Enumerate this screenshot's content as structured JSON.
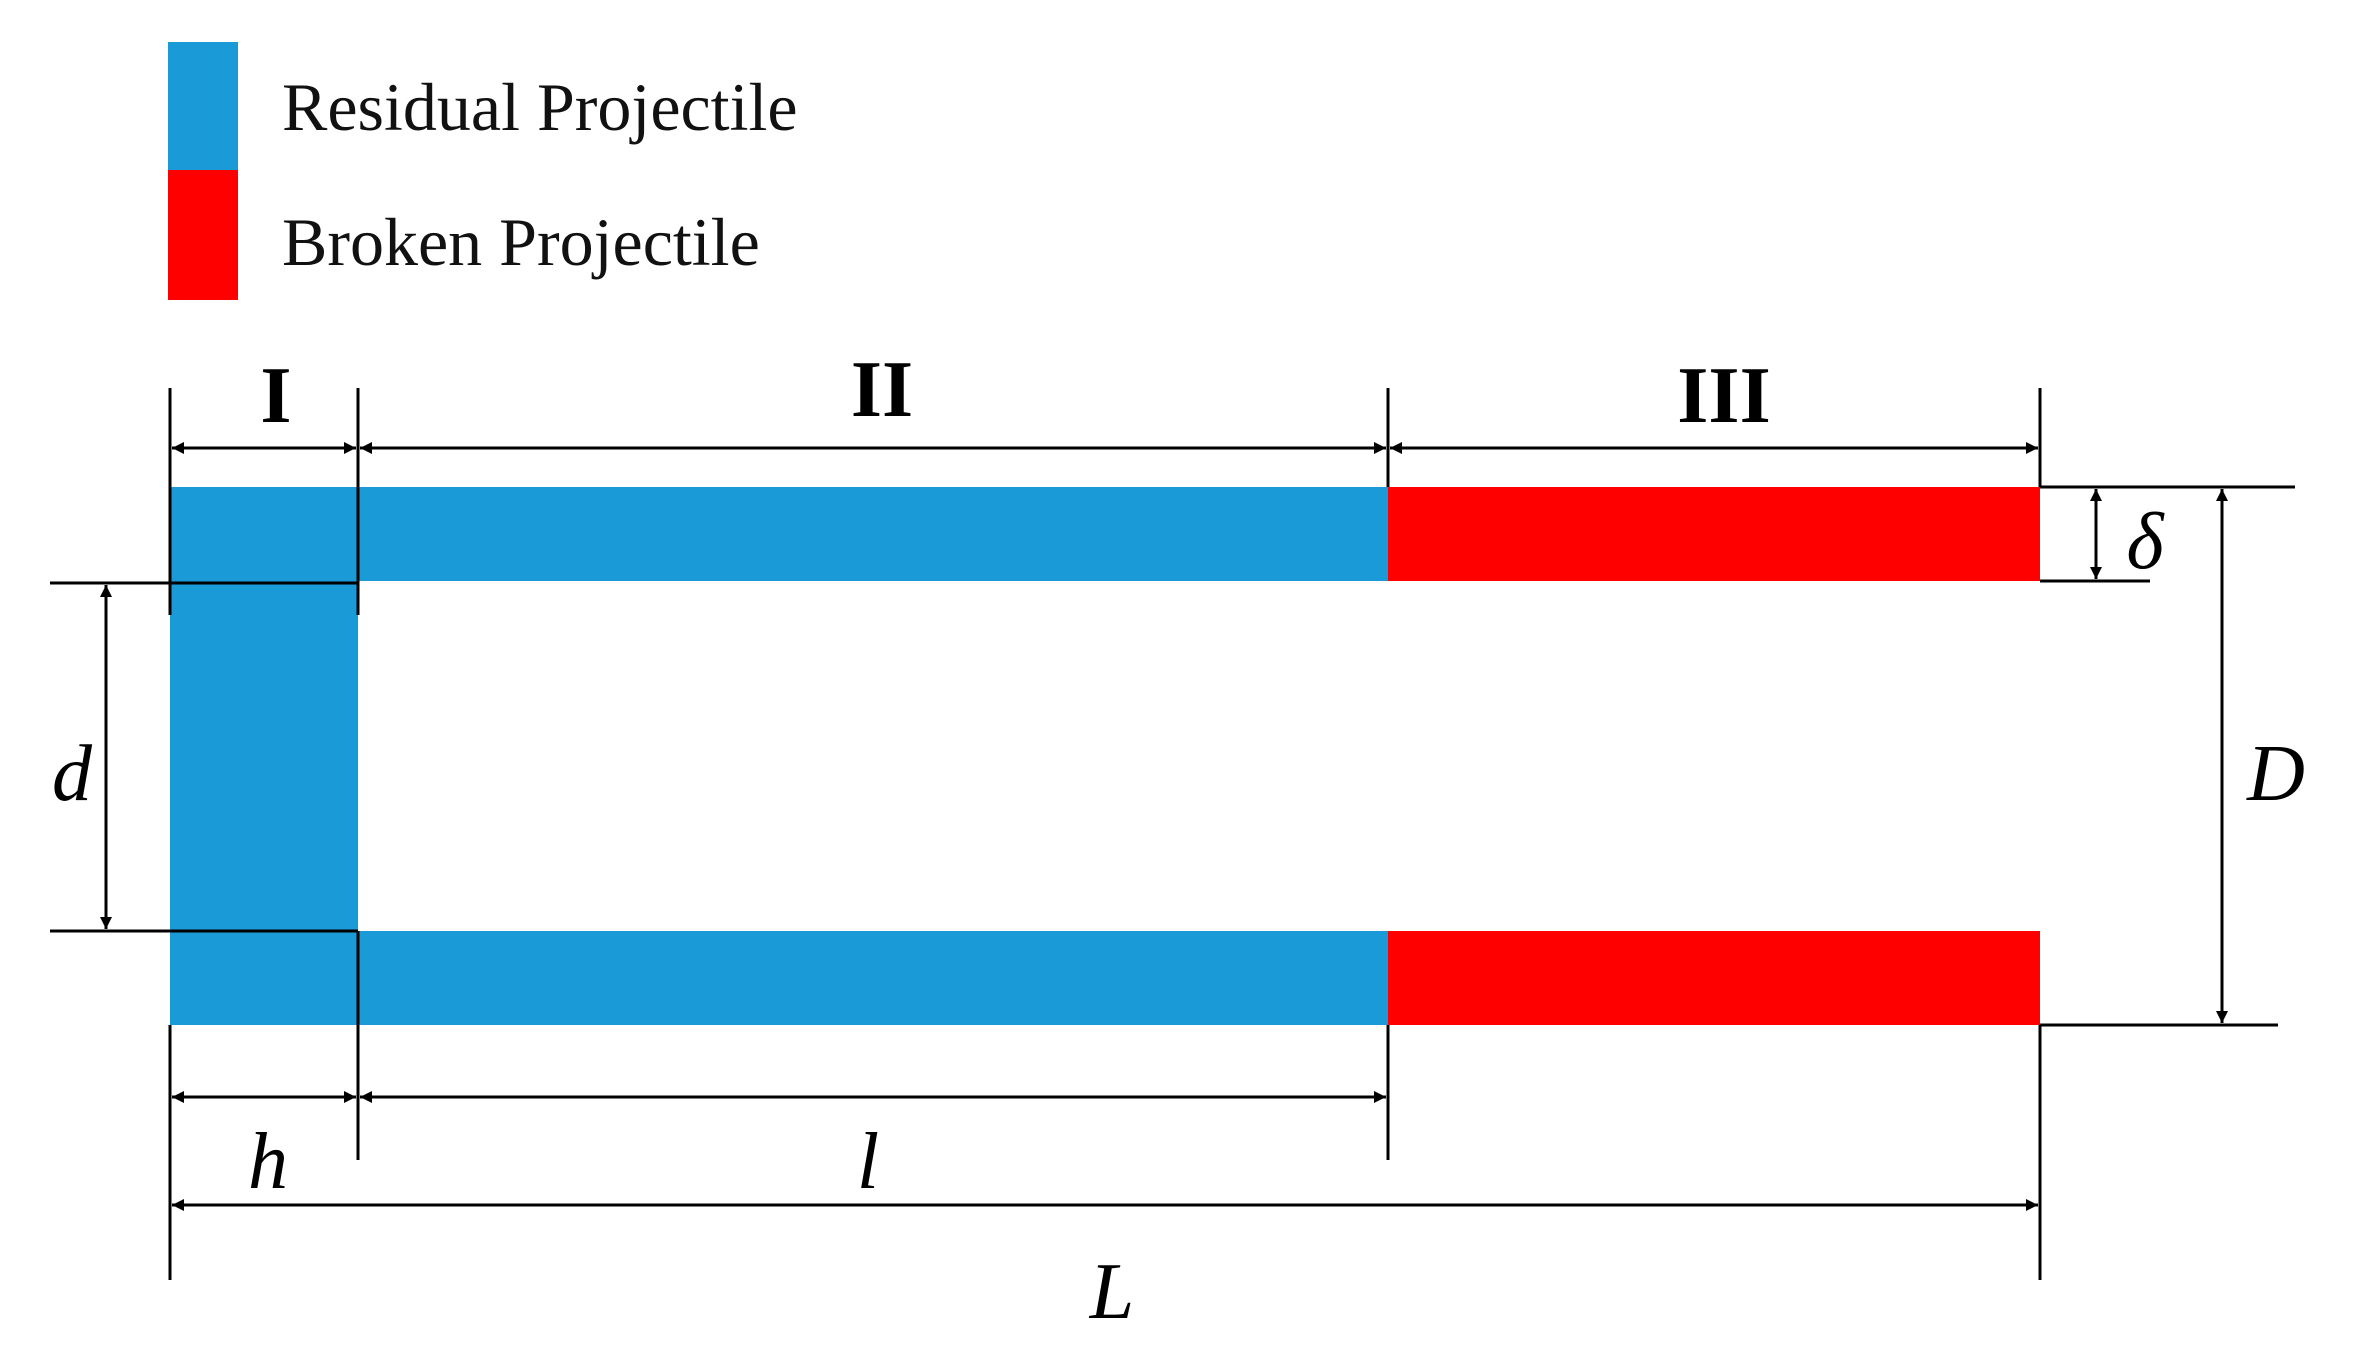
{
  "colors": {
    "residual": "#1a9ad6",
    "broken": "#ff0000"
  },
  "legend": [
    {
      "label": "Residual Projectile",
      "color": "#1a9ad6"
    },
    {
      "label": "Broken Projectile",
      "color": "#ff0000"
    }
  ],
  "regions": {
    "r1": "I",
    "r2": "II",
    "r3": "III"
  },
  "dimensions": {
    "delta": "δ",
    "inner_diameter": "d",
    "outer_diameter": "D",
    "head_length": "h",
    "body_length": "l",
    "total_length": "L"
  }
}
